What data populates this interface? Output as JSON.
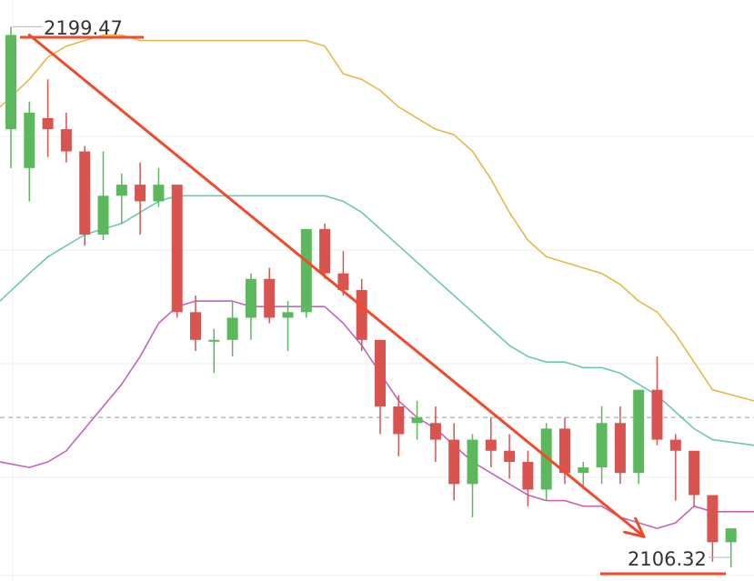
{
  "chart_data": {
    "type": "candlestick",
    "ylim": [
      2100,
      2203
    ],
    "grid": true,
    "price_labels": {
      "high": "2199.47",
      "low": "2106.32"
    },
    "reference_price": 2129,
    "colors": {
      "up": "#5cb85c",
      "down": "#d9534f",
      "upper_band": "#e8b84a",
      "middle_band": "#6cc9b0",
      "lower_band": "#c563b9",
      "trend_arrow": "#f04a2a",
      "label_underline": "#f04a2a",
      "grid": "#ececec",
      "reference_line": "#9a9a9a"
    },
    "candles": [
      {
        "open": 2181,
        "high": 2199.5,
        "low": 2174,
        "close": 2198
      },
      {
        "open": 2174,
        "high": 2186,
        "low": 2168,
        "close": 2184
      },
      {
        "open": 2183,
        "high": 2190,
        "low": 2176,
        "close": 2181
      },
      {
        "open": 2181,
        "high": 2184,
        "low": 2175,
        "close": 2177
      },
      {
        "open": 2177,
        "high": 2178,
        "low": 2160,
        "close": 2162
      },
      {
        "open": 2162,
        "high": 2177,
        "low": 2161,
        "close": 2169
      },
      {
        "open": 2169,
        "high": 2173,
        "low": 2164,
        "close": 2171
      },
      {
        "open": 2171,
        "high": 2175,
        "low": 2162,
        "close": 2168
      },
      {
        "open": 2168,
        "high": 2174,
        "low": 2167,
        "close": 2171
      },
      {
        "open": 2171,
        "high": 2171,
        "low": 2147,
        "close": 2148
      },
      {
        "open": 2148,
        "high": 2151,
        "low": 2141,
        "close": 2143
      },
      {
        "open": 2143,
        "high": 2145,
        "low": 2137,
        "close": 2143
      },
      {
        "open": 2143,
        "high": 2150,
        "low": 2140,
        "close": 2147
      },
      {
        "open": 2147,
        "high": 2155,
        "low": 2143,
        "close": 2154
      },
      {
        "open": 2154,
        "high": 2156,
        "low": 2146,
        "close": 2147
      },
      {
        "open": 2147,
        "high": 2150,
        "low": 2141,
        "close": 2148
      },
      {
        "open": 2148,
        "high": 2163,
        "low": 2147,
        "close": 2163
      },
      {
        "open": 2163,
        "high": 2164,
        "low": 2154,
        "close": 2155
      },
      {
        "open": 2155,
        "high": 2159,
        "low": 2151,
        "close": 2152
      },
      {
        "open": 2152,
        "high": 2154,
        "low": 2141,
        "close": 2143
      },
      {
        "open": 2143,
        "high": 2143,
        "low": 2126,
        "close": 2131
      },
      {
        "open": 2131,
        "high": 2133,
        "low": 2122,
        "close": 2126
      },
      {
        "open": 2128,
        "high": 2132,
        "low": 2125,
        "close": 2129
      },
      {
        "open": 2128,
        "high": 2131,
        "low": 2121,
        "close": 2125
      },
      {
        "open": 2125,
        "high": 2128,
        "low": 2114,
        "close": 2117
      },
      {
        "open": 2117,
        "high": 2126,
        "low": 2111,
        "close": 2125
      },
      {
        "open": 2125,
        "high": 2129,
        "low": 2120,
        "close": 2123
      },
      {
        "open": 2123,
        "high": 2126,
        "low": 2118,
        "close": 2121
      },
      {
        "open": 2121,
        "high": 2123,
        "low": 2113,
        "close": 2116
      },
      {
        "open": 2116,
        "high": 2128,
        "low": 2114,
        "close": 2127
      },
      {
        "open": 2127,
        "high": 2129,
        "low": 2117,
        "close": 2119
      },
      {
        "open": 2119,
        "high": 2121,
        "low": 2116,
        "close": 2120
      },
      {
        "open": 2120,
        "high": 2131,
        "low": 2117,
        "close": 2128
      },
      {
        "open": 2128,
        "high": 2131,
        "low": 2117,
        "close": 2119
      },
      {
        "open": 2119,
        "high": 2134,
        "low": 2117,
        "close": 2134
      },
      {
        "open": 2134,
        "high": 2140,
        "low": 2124,
        "close": 2125
      },
      {
        "open": 2125,
        "high": 2126,
        "low": 2114,
        "close": 2123
      },
      {
        "open": 2123,
        "high": 2123,
        "low": 2113,
        "close": 2115
      },
      {
        "open": 2115,
        "high": 2115,
        "low": 2103,
        "close": 2106.5
      },
      {
        "open": 2106.5,
        "high": 2109,
        "low": 2102,
        "close": 2109
      }
    ],
    "series": [
      {
        "name": "upper",
        "values": [
          2185,
          2190,
          2194,
          2196,
          2197,
          2198,
          2198,
          2197,
          2197,
          2197,
          2197,
          2197,
          2197,
          2197,
          2197,
          2197,
          2197,
          2196,
          2191,
          2190,
          2188,
          2185,
          2183,
          2181,
          2180,
          2177,
          2172,
          2166,
          2161,
          2158,
          2157,
          2156,
          2155,
          2153,
          2150,
          2148,
          2144,
          2139,
          2134,
          2132
        ]
      },
      {
        "name": "middle",
        "values": [
          2150,
          2155,
          2158,
          2160,
          2162,
          2163,
          2164,
          2166,
          2168,
          2169,
          2169,
          2169,
          2169,
          2169,
          2169,
          2169,
          2169,
          2169,
          2168,
          2166,
          2163,
          2160,
          2157,
          2154,
          2151,
          2148,
          2145,
          2142,
          2140,
          2139,
          2139,
          2138,
          2138,
          2137,
          2135,
          2133,
          2130,
          2127,
          2125,
          2124
        ]
      },
      {
        "name": "lower",
        "values": [
          2121,
          2120,
          2121,
          2123,
          2127,
          2131,
          2135,
          2140,
          2146,
          2149,
          2150,
          2150,
          2150,
          2149,
          2149,
          2149,
          2149,
          2149,
          2146,
          2142,
          2137,
          2132,
          2129,
          2127,
          2124,
          2121,
          2119,
          2117,
          2115,
          2114,
          2114,
          2113,
          2113,
          2111,
          2110,
          2109,
          2110,
          2113,
          2112,
          2112
        ]
      }
    ]
  }
}
